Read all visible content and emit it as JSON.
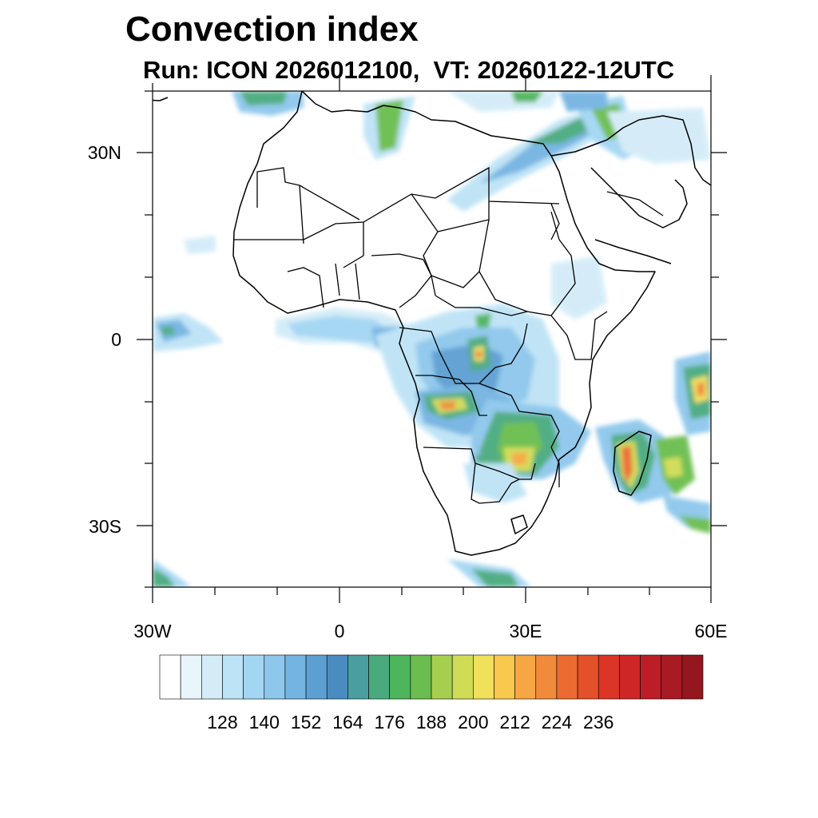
{
  "title": "Convection index",
  "subtitle": "Run: ICON 2026012100,  VT: 20260122-12UTC",
  "map": {
    "lon_range": [
      -30,
      60
    ],
    "lat_range": [
      -40,
      40
    ],
    "x_ticks": [
      {
        "lon": -30,
        "label": "30W"
      },
      {
        "lon": 0,
        "label": "0"
      },
      {
        "lon": 30,
        "label": "30E"
      },
      {
        "lon": 60,
        "label": "60E"
      }
    ],
    "y_ticks": [
      {
        "lat": 30,
        "label": "30N"
      },
      {
        "lat": 0,
        "label": "0"
      },
      {
        "lat": -30,
        "label": "30S"
      }
    ]
  },
  "colorbar": {
    "colors": [
      "#ffffff",
      "#e8f5fc",
      "#d3ecf8",
      "#bde3f6",
      "#a3d6f3",
      "#8dc7ec",
      "#74b4e2",
      "#5c9fd2",
      "#4a8cbf",
      "#4a9ea0",
      "#4aaa7e",
      "#4db55c",
      "#6abd4e",
      "#a6cf50",
      "#d0dc55",
      "#f0e05a",
      "#f8c84f",
      "#f6a743",
      "#f18a3a",
      "#ec6b30",
      "#e45029",
      "#dc3426",
      "#cf2527",
      "#bc1d27",
      "#a81a24",
      "#94161f"
    ],
    "labels": [
      "128",
      "140",
      "152",
      "164",
      "176",
      "188",
      "200",
      "212",
      "224",
      "236"
    ]
  }
}
